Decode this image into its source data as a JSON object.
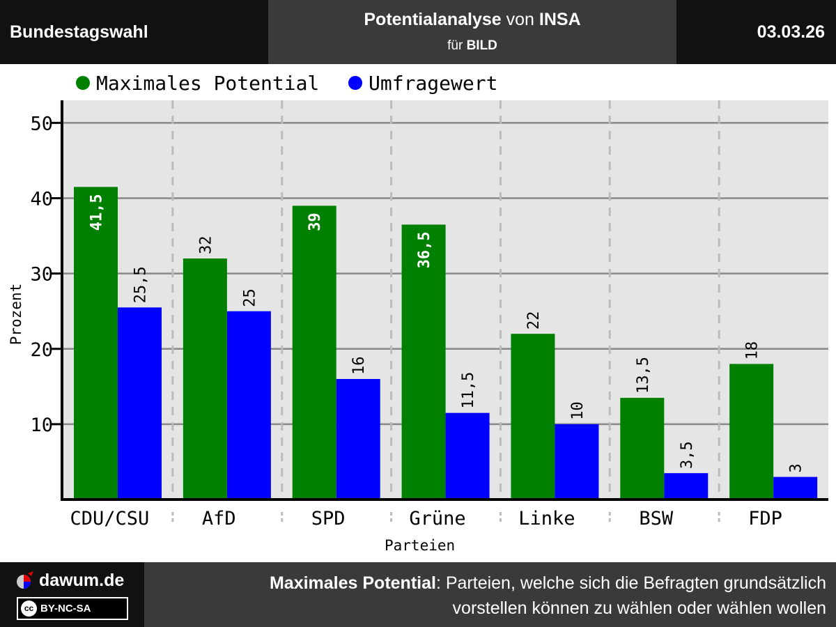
{
  "header": {
    "left": "Bundestagswahl",
    "title_main": "Potentialanalyse",
    "title_mid": " von ",
    "title_inst": "INSA",
    "subtitle_pre": "für ",
    "subtitle_client": "BILD",
    "date": "03.03.26"
  },
  "colors": {
    "potential": "#008000",
    "survey": "#0000ff",
    "plot_bg": "#e5e5e5"
  },
  "chart_data": {
    "type": "bar",
    "categories": [
      "CDU/CSU",
      "AfD",
      "SPD",
      "Grüne",
      "Linke",
      "BSW",
      "FDP"
    ],
    "series": [
      {
        "name": "Maximales Potential",
        "values": [
          41.5,
          32,
          39,
          36.5,
          22,
          13.5,
          18
        ],
        "labels": [
          "41,5",
          "32",
          "39",
          "36,5",
          "22",
          "13,5",
          "18"
        ],
        "color": "#008000"
      },
      {
        "name": "Umfragewert",
        "values": [
          25.5,
          25,
          16,
          11.5,
          10,
          3.5,
          3
        ],
        "labels": [
          "25,5",
          "25",
          "16",
          "11,5",
          "10",
          "3,5",
          "3"
        ],
        "color": "#0000ff"
      }
    ],
    "xlabel": "Parteien",
    "ylabel": "Prozent",
    "ylim": [
      0,
      53
    ],
    "yticks": [
      10,
      20,
      30,
      40,
      50
    ],
    "grid": true,
    "legend": "top-left"
  },
  "footer": {
    "site": "dawum.de",
    "license": "BY-NC-SA",
    "license_icon": "cc",
    "note_term": "Maximales Potential",
    "note_line1": ": Parteien, welche sich die Befragten grundsätzlich",
    "note_line2": "vorstellen können zu wählen oder wählen wollen"
  }
}
